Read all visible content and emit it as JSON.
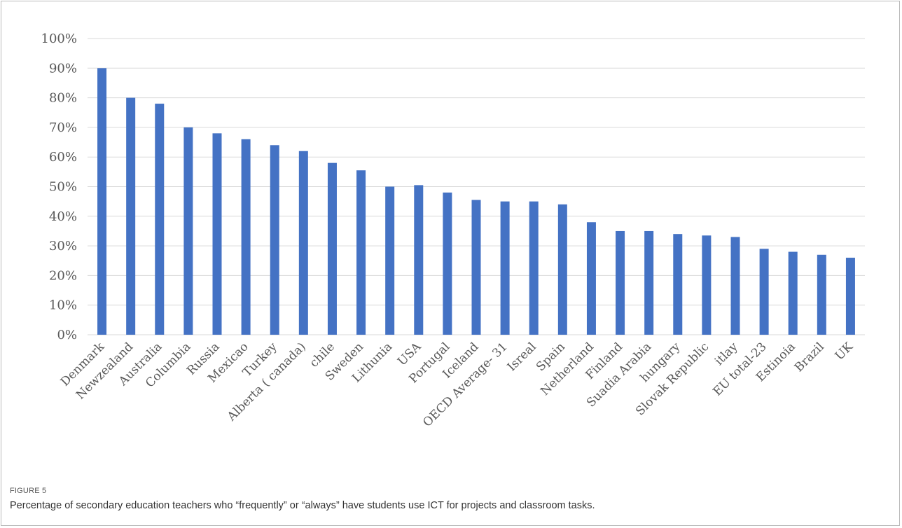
{
  "figure": {
    "label": "FIGURE 5",
    "caption": "Percentage of secondary education teachers who “frequently” or “always” have students use ICT for projects and classroom tasks."
  },
  "colors": {
    "bar": "#4472C4",
    "grid": "#d9d9d9",
    "axis_text": "#595959"
  },
  "chart_data": {
    "type": "bar",
    "title": "",
    "xlabel": "",
    "ylabel": "",
    "ylim": [
      0,
      100
    ],
    "y_ticks": [
      "0%",
      "10%",
      "20%",
      "30%",
      "40%",
      "50%",
      "60%",
      "70%",
      "80%",
      "90%",
      "100%"
    ],
    "grid": true,
    "legend": "none",
    "categories": [
      "Denmark",
      "Newzealand",
      "Australia",
      "Columbia",
      "Russia",
      "Mexicao",
      "Turkey",
      "Alberta ( canada)",
      "chile",
      "Sweden",
      "Lithunia",
      "USA",
      "Portugal",
      "Iceland",
      "OECD Average- 31",
      "Isreal",
      "Spain",
      "Netherland",
      "Finland",
      "Suadia Arabia",
      "hungary",
      "Slovak Republic",
      "itlay",
      "EU total-23",
      "Estinoia",
      "Brazil",
      "UK"
    ],
    "values": [
      90,
      80,
      78,
      70,
      68,
      66,
      64,
      62,
      58,
      55.5,
      50,
      50.5,
      48,
      45.5,
      45,
      45,
      44,
      38,
      35,
      35,
      34,
      33.5,
      33,
      29,
      28,
      27,
      26
    ]
  }
}
